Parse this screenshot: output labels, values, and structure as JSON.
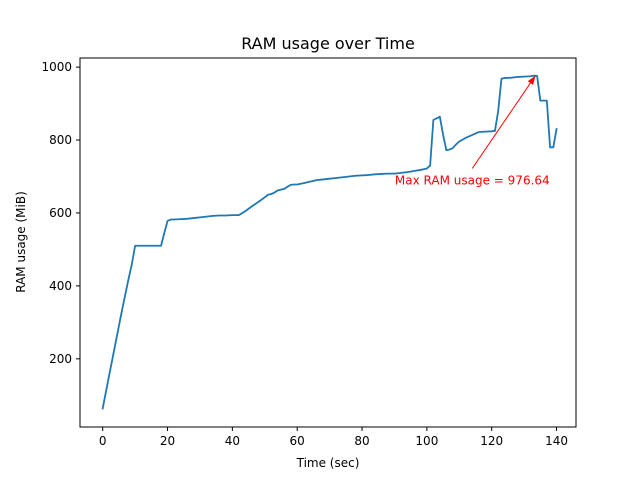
{
  "chart_data": {
    "type": "line",
    "title": "RAM usage over Time",
    "xlabel": "Time (sec)",
    "ylabel": "RAM usage (MiB)",
    "xlim": [
      -7,
      146
    ],
    "ylim": [
      13,
      1025
    ],
    "xticks": [
      0,
      20,
      40,
      60,
      80,
      100,
      120,
      140
    ],
    "yticks": [
      200,
      400,
      600,
      800,
      1000
    ],
    "grid": false,
    "line_color": "#1f77b4",
    "series": [
      {
        "x": [
          0,
          2,
          4,
          6,
          8,
          9,
          10,
          11,
          12,
          13,
          14,
          15,
          16,
          17,
          18,
          19,
          20,
          21,
          22,
          24,
          26,
          28,
          30,
          32,
          34,
          36,
          38,
          40,
          42,
          44,
          46,
          48,
          50,
          51,
          52,
          53,
          54,
          55,
          56,
          57,
          58,
          59,
          60,
          62,
          64,
          66,
          68,
          70,
          72,
          74,
          76,
          78,
          80,
          82,
          84,
          86,
          88,
          90,
          92,
          94,
          96,
          98,
          99,
          100,
          101,
          102,
          104,
          105,
          106,
          107,
          108,
          109,
          110,
          112,
          114,
          116,
          118,
          120,
          121,
          122,
          123,
          124,
          126,
          128,
          130,
          132,
          133,
          134,
          135,
          136,
          137,
          138,
          139,
          140
        ],
        "y": [
          64,
          155,
          245,
          335,
          420,
          460,
          510,
          510,
          510,
          510,
          510,
          510,
          510,
          510,
          510,
          545,
          578,
          582,
          582,
          583,
          584,
          586,
          588,
          590,
          592,
          593,
          593,
          594,
          594,
          605,
          618,
          630,
          643,
          650,
          652,
          656,
          662,
          664,
          666,
          672,
          677,
          678,
          678,
          682,
          686,
          690,
          692,
          694,
          696,
          698,
          700,
          702,
          703,
          704,
          706,
          707,
          708,
          708,
          710,
          712,
          715,
          718,
          720,
          722,
          730,
          855,
          864,
          815,
          772,
          774,
          778,
          788,
          796,
          806,
          814,
          822,
          823,
          824,
          825,
          880,
          968,
          970,
          971,
          973,
          974,
          975,
          976.64,
          976,
          908,
          908,
          908,
          780,
          780,
          830
        ]
      }
    ],
    "annotation": {
      "text": "Max RAM usage = 976.64",
      "color": "#ff0000",
      "xy": [
        133.5,
        976.64
      ],
      "xytext": [
        114,
        722
      ]
    }
  }
}
